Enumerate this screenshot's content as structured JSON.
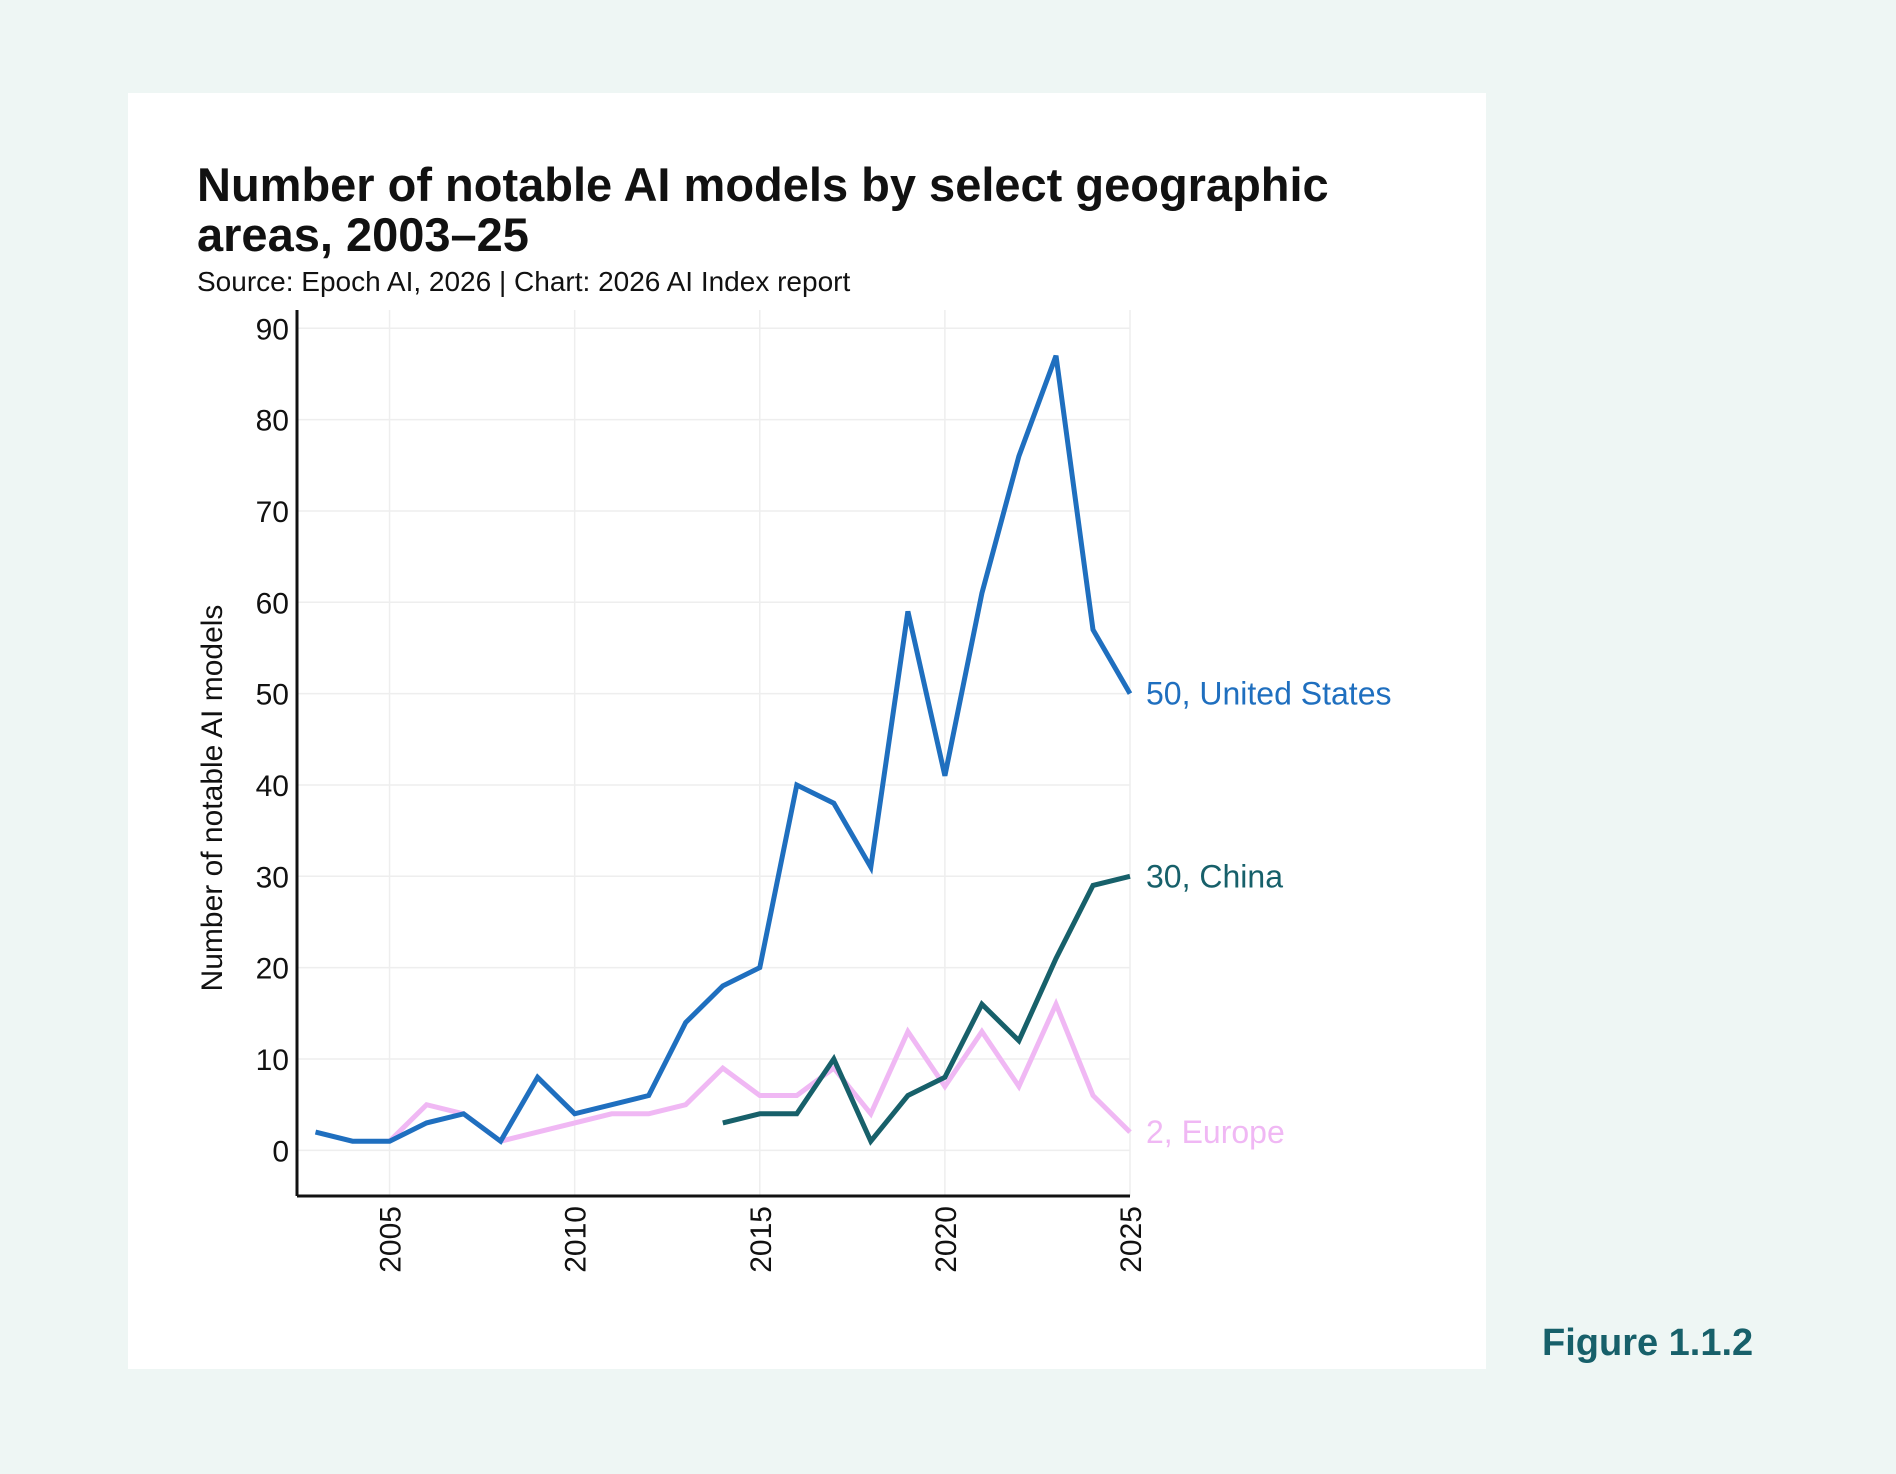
{
  "figure_label": "Figure 1.1.2",
  "chart_data": {
    "type": "line",
    "title": "Number of notable AI models by select geographic areas, 2003–25",
    "subtitle": "Source: Epoch AI, 2026 | Chart: 2026 AI Index report",
    "xlabel": "",
    "ylabel": "Number of notable AI models",
    "xlim": [
      2002.5,
      2025
    ],
    "ylim": [
      -5,
      92
    ],
    "x_ticks": [
      "2005",
      "2010",
      "2015",
      "2020",
      "2025"
    ],
    "y_ticks": [
      "0",
      "10",
      "20",
      "30",
      "40",
      "50",
      "60",
      "70",
      "80",
      "90"
    ],
    "grid": true,
    "legend": "end-of-line labels",
    "colors": {
      "us": "#1f6fbf",
      "china": "#17606a",
      "europe": "#f0b8f4"
    },
    "series": [
      {
        "name": "United States",
        "end_label": "50, United States",
        "color": "#1f6fbf",
        "x": [
          2003,
          2004,
          2005,
          2006,
          2007,
          2008,
          2009,
          2010,
          2011,
          2012,
          2013,
          2014,
          2015,
          2016,
          2017,
          2018,
          2019,
          2020,
          2021,
          2022,
          2023,
          2024,
          2025
        ],
        "y": [
          2,
          1,
          1,
          3,
          4,
          1,
          8,
          4,
          5,
          6,
          14,
          18,
          20,
          40,
          38,
          31,
          59,
          41,
          61,
          76,
          87,
          57,
          50
        ]
      },
      {
        "name": "China",
        "end_label": "30, China",
        "color": "#17606a",
        "x": [
          2014,
          2015,
          2016,
          2017,
          2018,
          2019,
          2020,
          2021,
          2022,
          2023,
          2024,
          2025
        ],
        "y": [
          3,
          4,
          4,
          10,
          1,
          6,
          8,
          16,
          12,
          21,
          29,
          30
        ]
      },
      {
        "name": "Europe",
        "end_label": "2, Europe",
        "color": "#f0b8f4",
        "x": [
          2005,
          2006,
          2007,
          2008,
          2009,
          2010,
          2011,
          2012,
          2013,
          2014,
          2015,
          2016,
          2017,
          2018,
          2019,
          2020,
          2021,
          2022,
          2023,
          2024,
          2025
        ],
        "y": [
          1,
          5,
          4,
          1,
          2,
          3,
          4,
          4,
          5,
          9,
          6,
          6,
          9,
          4,
          13,
          7,
          13,
          7,
          16,
          6,
          2
        ]
      }
    ]
  }
}
